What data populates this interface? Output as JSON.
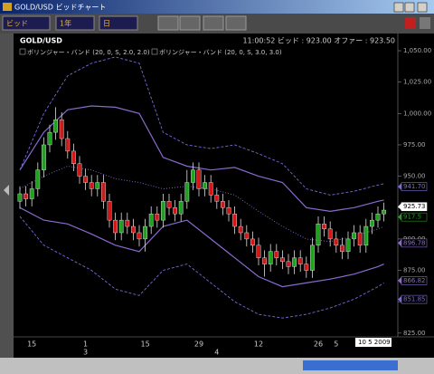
{
  "window_title": "GOLD/USD ビッドチャート",
  "toolbar": {
    "price_type": "ビッド",
    "period": "1年",
    "interval": "日"
  },
  "chart_data": {
    "type": "candlestick",
    "symbol": "GOLD/USD",
    "quote": "11:00:52 ビッド : 923.00 オファー : 923.50",
    "up_color": "#1fa01f",
    "down_color": "#d01818",
    "categories": [
      null,
      null,
      "15",
      null,
      null,
      null,
      null,
      null,
      null,
      null,
      null,
      "1",
      null,
      null,
      null,
      null,
      null,
      null,
      null,
      null,
      null,
      "15",
      null,
      null,
      null,
      null,
      null,
      null,
      null,
      null,
      "29",
      null,
      null,
      null,
      null,
      null,
      null,
      null,
      null,
      null,
      "12",
      null,
      null,
      null,
      null,
      null,
      null,
      null,
      null,
      null,
      "26",
      null,
      null,
      "5",
      null,
      null,
      null,
      null,
      null,
      null,
      null,
      null
    ],
    "months": [
      null,
      null,
      null,
      null,
      null,
      null,
      null,
      null,
      null,
      null,
      null,
      "3",
      null,
      null,
      null,
      null,
      null,
      null,
      null,
      null,
      null,
      null,
      null,
      null,
      null,
      null,
      null,
      null,
      null,
      null,
      null,
      null,
      null,
      "4",
      null,
      null,
      null,
      null,
      null,
      null,
      null,
      null,
      null,
      null,
      null,
      null,
      null,
      null,
      null,
      null,
      null,
      null,
      null,
      null,
      null,
      null,
      null,
      null,
      null,
      null,
      null,
      null
    ],
    "open": [
      930,
      936,
      932,
      940,
      955,
      975,
      985,
      995,
      980,
      970,
      960,
      950,
      945,
      940,
      945,
      930,
      915,
      905,
      915,
      910,
      905,
      900,
      910,
      920,
      915,
      930,
      925,
      920,
      930,
      945,
      955,
      940,
      945,
      935,
      930,
      925,
      920,
      910,
      905,
      900,
      895,
      885,
      880,
      890,
      885,
      882,
      878,
      885,
      880,
      875,
      895,
      912,
      908,
      900,
      895,
      890,
      900,
      905,
      895,
      910,
      915,
      920
    ],
    "high": [
      942,
      942,
      946,
      961,
      981,
      991,
      1005,
      1001,
      986,
      976,
      966,
      956,
      951,
      951,
      951,
      936,
      921,
      921,
      921,
      916,
      911,
      916,
      926,
      926,
      936,
      936,
      931,
      936,
      955,
      961,
      961,
      951,
      951,
      941,
      936,
      931,
      926,
      916,
      911,
      906,
      901,
      891,
      896,
      896,
      891,
      888,
      891,
      891,
      886,
      901,
      918,
      918,
      914,
      906,
      901,
      906,
      911,
      911,
      916,
      921,
      926,
      929
    ],
    "low": [
      924,
      926,
      926,
      934,
      949,
      969,
      979,
      974,
      964,
      954,
      944,
      939,
      934,
      934,
      924,
      909,
      899,
      899,
      904,
      899,
      894,
      890,
      904,
      909,
      909,
      919,
      914,
      914,
      924,
      939,
      934,
      934,
      929,
      924,
      919,
      914,
      904,
      899,
      894,
      889,
      879,
      870,
      874,
      879,
      876,
      872,
      872,
      874,
      869,
      869,
      889,
      902,
      894,
      889,
      884,
      884,
      894,
      889,
      889,
      904,
      909,
      914
    ],
    "close": [
      936,
      932,
      940,
      955,
      975,
      985,
      995,
      980,
      970,
      960,
      950,
      945,
      940,
      945,
      930,
      915,
      905,
      915,
      910,
      905,
      900,
      910,
      920,
      915,
      930,
      925,
      920,
      930,
      945,
      955,
      940,
      945,
      935,
      930,
      925,
      920,
      910,
      905,
      900,
      895,
      885,
      880,
      890,
      885,
      882,
      878,
      885,
      880,
      875,
      895,
      912,
      908,
      900,
      895,
      890,
      900,
      905,
      895,
      910,
      915,
      920,
      923
    ],
    "indicators": [
      {
        "name": "ボリンジャー・バンド (20, 0, S, 2.0, 2.0)",
        "color": "#8a6ad0",
        "lines": [
          {
            "style": "solid",
            "x": [
              0,
              4,
              8,
              12,
              16,
              20,
              24,
              28,
              32,
              36,
              40,
              44,
              48,
              52,
              56,
              60,
              61
            ],
            "values": [
              955,
              985,
              1003,
              1006,
              1005,
              1000,
              965,
              958,
              955,
              957,
              950,
              945,
              925,
              922,
              925,
              930,
              931
            ]
          },
          {
            "style": "dotted",
            "x": [
              0,
              4,
              8,
              12,
              16,
              20,
              24,
              28,
              32,
              36,
              40,
              44,
              48,
              52,
              56,
              60,
              61
            ],
            "values": [
              940,
              950,
              958,
              955,
              948,
              945,
              940,
              942,
              940,
              935,
              922,
              910,
              900,
              898,
              902,
              908,
              910
            ]
          },
          {
            "style": "solid",
            "x": [
              0,
              4,
              8,
              12,
              16,
              20,
              24,
              28,
              32,
              36,
              40,
              44,
              48,
              52,
              56,
              60,
              61
            ],
            "values": [
              925,
              915,
              912,
              904,
              895,
              890,
              910,
              915,
              900,
              885,
              870,
              862,
              865,
              868,
              872,
              878,
              880
            ]
          }
        ]
      },
      {
        "name": "ボリンジャー・バンド (20, 0, S, 3.0, 3.0)",
        "color": "#7a6ad8",
        "lines": [
          {
            "style": "dashed",
            "x": [
              0,
              4,
              8,
              12,
              16,
              20,
              24,
              28,
              32,
              36,
              40,
              44,
              48,
              52,
              56,
              60,
              61
            ],
            "values": [
              955,
              1000,
              1030,
              1040,
              1045,
              1040,
              985,
              975,
              972,
              975,
              968,
              960,
              940,
              935,
              938,
              943,
              944
            ]
          },
          {
            "style": "dashed",
            "x": [
              0,
              4,
              8,
              12,
              16,
              20,
              24,
              28,
              32,
              36,
              40,
              44,
              48,
              52,
              56,
              60,
              61
            ],
            "values": [
              918,
              895,
              885,
              875,
              860,
              855,
              875,
              880,
              865,
              850,
              840,
              837,
              840,
              845,
              852,
              862,
              865
            ]
          }
        ]
      }
    ],
    "ylim": [
      822,
      1063
    ],
    "yticks": [
      {
        "value": 1050,
        "label": "1,050.00"
      },
      {
        "value": 1025,
        "label": "1,025.00"
      },
      {
        "value": 1000,
        "label": "1,000.00"
      },
      {
        "value": 975,
        "label": "975.00"
      },
      {
        "value": 950,
        "label": "950.00"
      },
      {
        "value": 925,
        "label": "925.00"
      },
      {
        "value": 900,
        "label": "900.00"
      },
      {
        "value": 875,
        "label": "875.00"
      },
      {
        "value": 850,
        "label": "850.00"
      },
      {
        "value": 825,
        "label": "825.00"
      }
    ],
    "price_markers": [
      {
        "value": 941.7,
        "label": "941.70",
        "color": "#7a6ad8"
      },
      {
        "value": 925.73,
        "label": "925.73",
        "color": "#ffffff"
      },
      {
        "value": 917.5,
        "label": "917.5",
        "color": "#1fa01f"
      },
      {
        "value": 896.78,
        "label": "896.78",
        "color": "#8a6ad0"
      },
      {
        "value": 866.82,
        "label": "866.82",
        "color": "#8a6ad0"
      },
      {
        "value": 851.85,
        "label": "851.85",
        "color": "#7a6ad8"
      }
    ],
    "date_box": "10 5 2009"
  }
}
